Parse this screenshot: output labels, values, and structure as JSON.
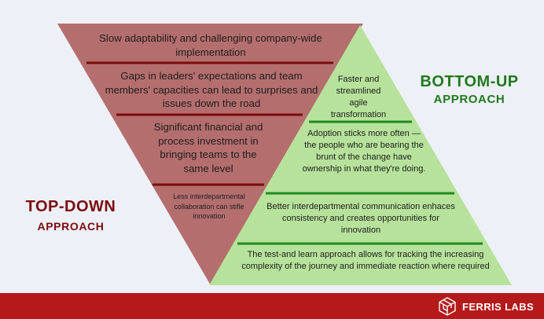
{
  "colors": {
    "background": "#eef0f7",
    "top_down_fill": "#b56e6e",
    "bottom_up_fill": "#b7e29b",
    "top_down_divider": "#7a0c0c",
    "bottom_up_divider": "#1f8a1f",
    "top_down_heading": "#7a0c0c",
    "bottom_up_heading": "#1f7a1f",
    "footer": "#b51a1a"
  },
  "top_down": {
    "heading_line1": "TOP-DOWN",
    "heading_line2": "APPROACH",
    "items": [
      "Slow adaptability and challenging company-wide implementation",
      "Gaps in leaders' expectations and team members' capacities can lead to surprises and issues down the road",
      "Significant financial and process investment in bringing teams to the same level",
      "Less interdepartmental collaboration can stifle innovation"
    ]
  },
  "bottom_up": {
    "heading_line1": "BOTTOM-UP",
    "heading_line2": "APPROACH",
    "items": [
      "Faster and streamlined agile transformation",
      "Adoption sticks more often — the people who are bearing the brunt of the change have ownership in what they're doing.",
      "Better interdepartmental communication enhaces consistency and creates opportunities for innovation",
      "The test-and learn approach allows for tracking the increasing complexity of the journey and immediate reaction where required"
    ]
  },
  "footer": {
    "brand": "FERRIS LABS",
    "logo_icon": "cube-logo-icon"
  }
}
